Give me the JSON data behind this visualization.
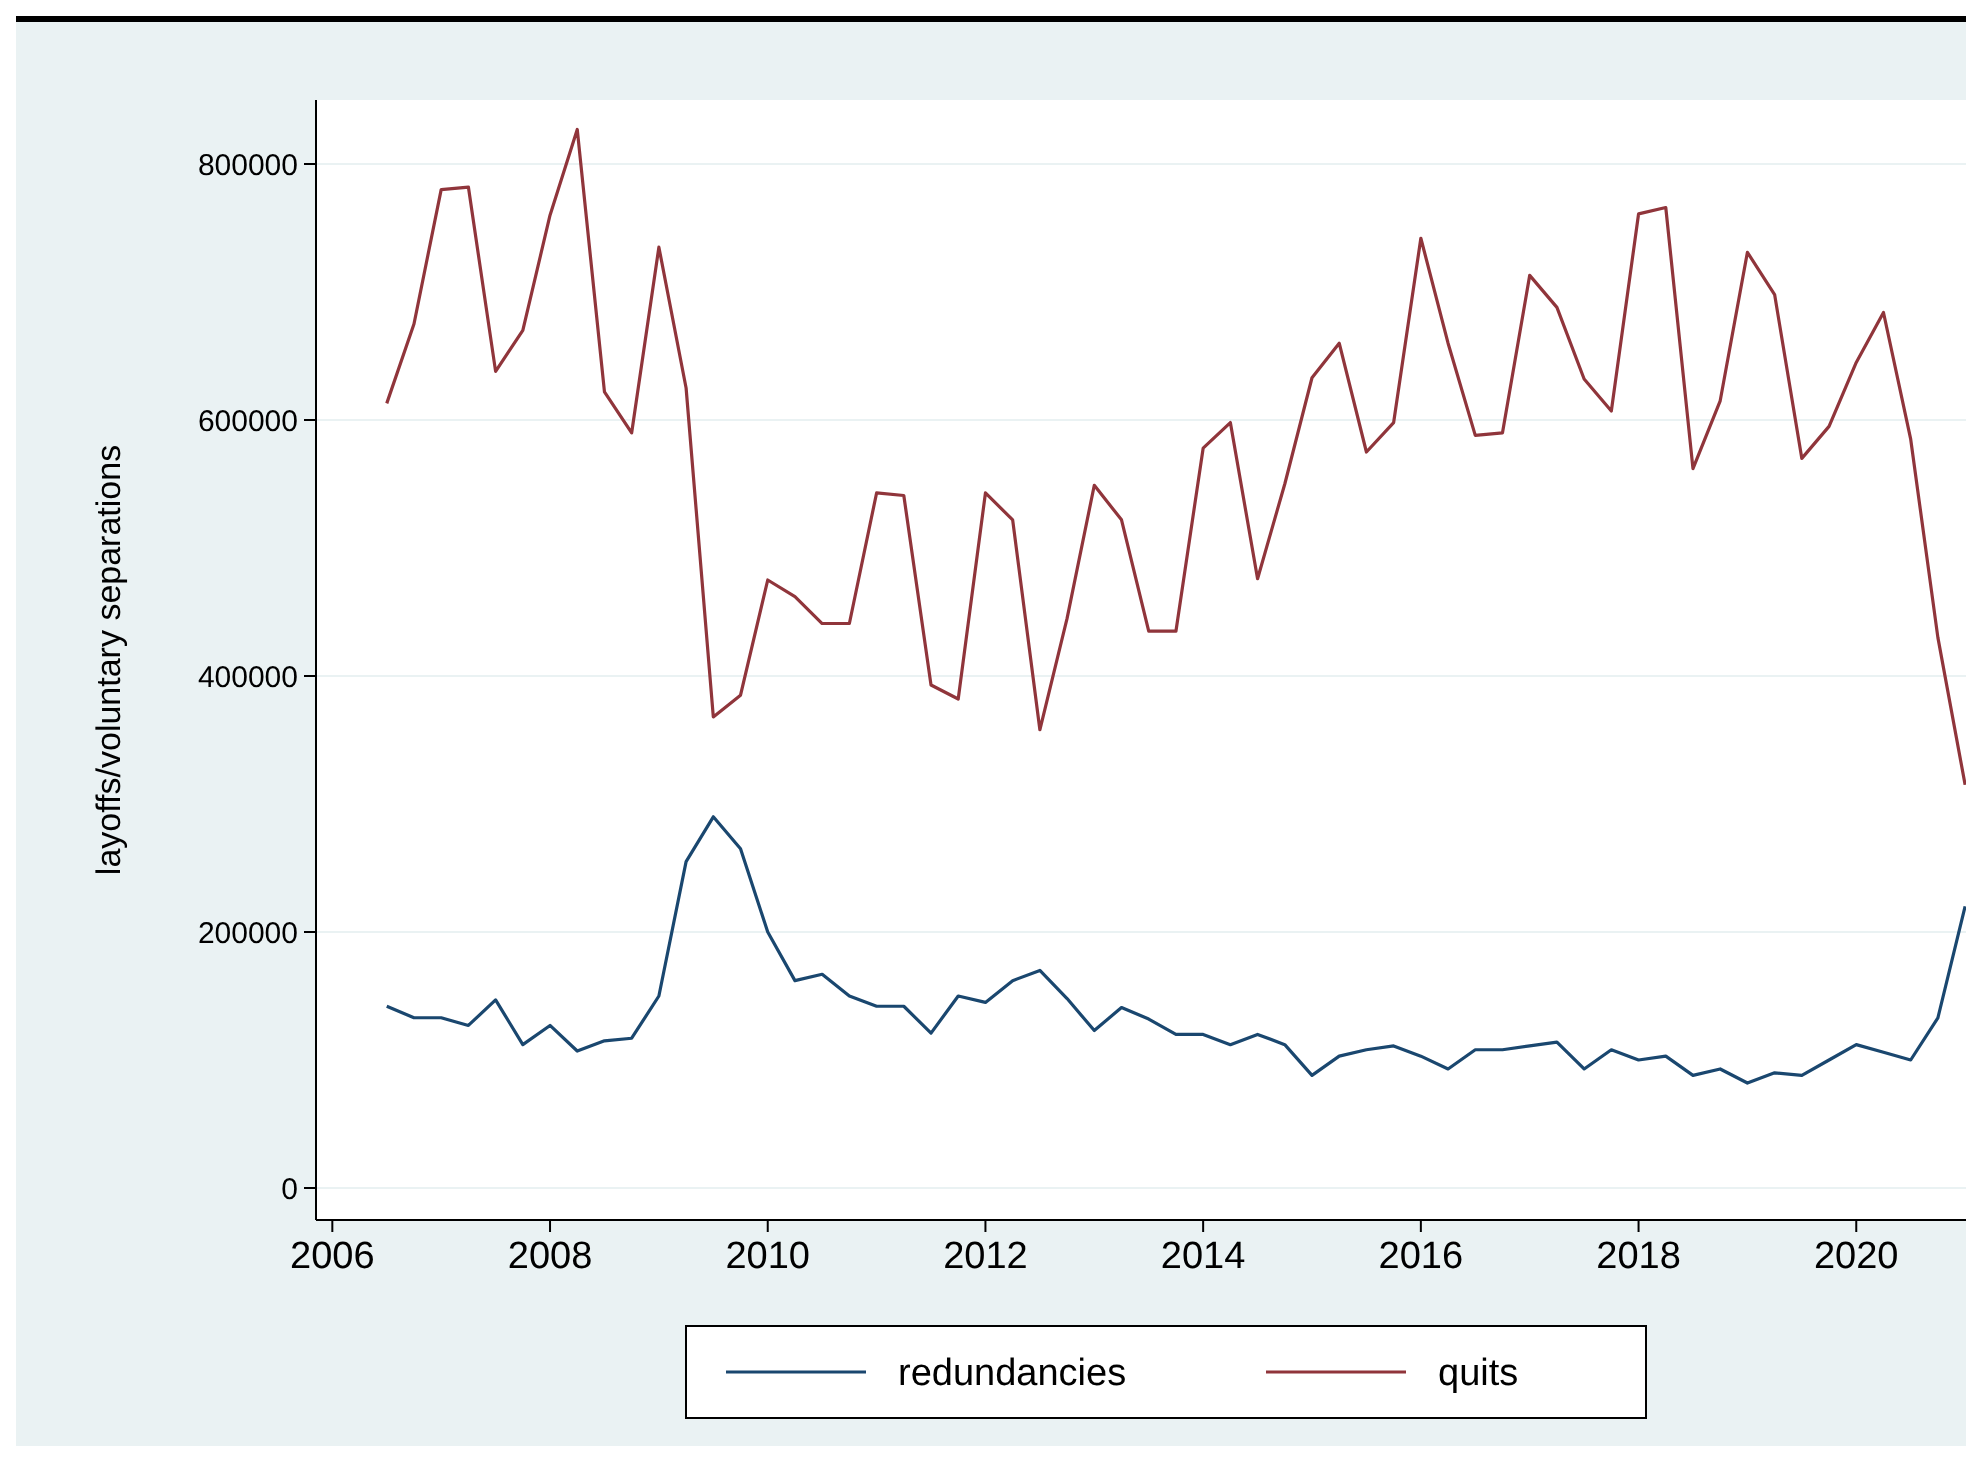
{
  "chart_data": {
    "type": "line",
    "ylabel": "layoffs/voluntary separations",
    "x": [
      2006.5,
      2006.75,
      2007,
      2007.25,
      2007.5,
      2007.75,
      2008,
      2008.25,
      2008.5,
      2008.75,
      2009,
      2009.25,
      2009.5,
      2009.75,
      2010,
      2010.25,
      2010.5,
      2010.75,
      2011,
      2011.25,
      2011.5,
      2011.75,
      2012,
      2012.25,
      2012.5,
      2012.75,
      2013,
      2013.25,
      2013.5,
      2013.75,
      2014,
      2014.25,
      2014.5,
      2014.75,
      2015,
      2015.25,
      2015.5,
      2015.75,
      2016,
      2016.25,
      2016.5,
      2016.75,
      2017,
      2017.25,
      2017.5,
      2017.75,
      2018,
      2018.25,
      2018.5,
      2018.75,
      2019,
      2019.25,
      2019.5,
      2019.75,
      2020,
      2020.25,
      2020.5,
      2020.75,
      2021
    ],
    "series": [
      {
        "name": "redundancies",
        "color": "#1a476f",
        "values": [
          142000,
          133000,
          133000,
          127000,
          147000,
          112000,
          127000,
          107000,
          115000,
          117000,
          150000,
          255000,
          290000,
          265000,
          200000,
          162000,
          167000,
          150000,
          142000,
          142000,
          121000,
          150000,
          145000,
          162000,
          170000,
          148000,
          123000,
          141000,
          132000,
          120000,
          120000,
          112000,
          120000,
          112000,
          88000,
          103000,
          108000,
          111000,
          103000,
          93000,
          108000,
          108000,
          111000,
          114000,
          93000,
          108000,
          100000,
          103000,
          88000,
          93000,
          82000,
          90000,
          88000,
          100000,
          112000,
          106000,
          100000,
          133000,
          220000
        ]
      },
      {
        "name": "quits",
        "color": "#90353b",
        "values": [
          613000,
          675000,
          780000,
          782000,
          638000,
          670000,
          760000,
          827000,
          622000,
          590000,
          735000,
          625000,
          368000,
          385000,
          475000,
          462000,
          441000,
          441000,
          543000,
          541000,
          393000,
          382000,
          543000,
          522000,
          358000,
          445000,
          549000,
          522000,
          435000,
          435000,
          578000,
          598000,
          476000,
          550000,
          633000,
          660000,
          575000,
          598000,
          742000,
          660000,
          588000,
          590000,
          713000,
          688000,
          632000,
          607000,
          761000,
          766000,
          562000,
          615000,
          731000,
          698000,
          570000,
          595000,
          645000,
          684000,
          585000,
          430000,
          315000
        ]
      }
    ],
    "xlim": [
      2005.85,
      2021.1
    ],
    "ylim": [
      -25000,
      850000
    ],
    "xticks": [
      2006,
      2008,
      2010,
      2012,
      2014,
      2016,
      2018,
      2020
    ],
    "yticks": [
      0,
      200000,
      400000,
      600000,
      800000
    ],
    "grid": "y",
    "legend": "bottom",
    "marker": "none",
    "line_style": "solid"
  }
}
